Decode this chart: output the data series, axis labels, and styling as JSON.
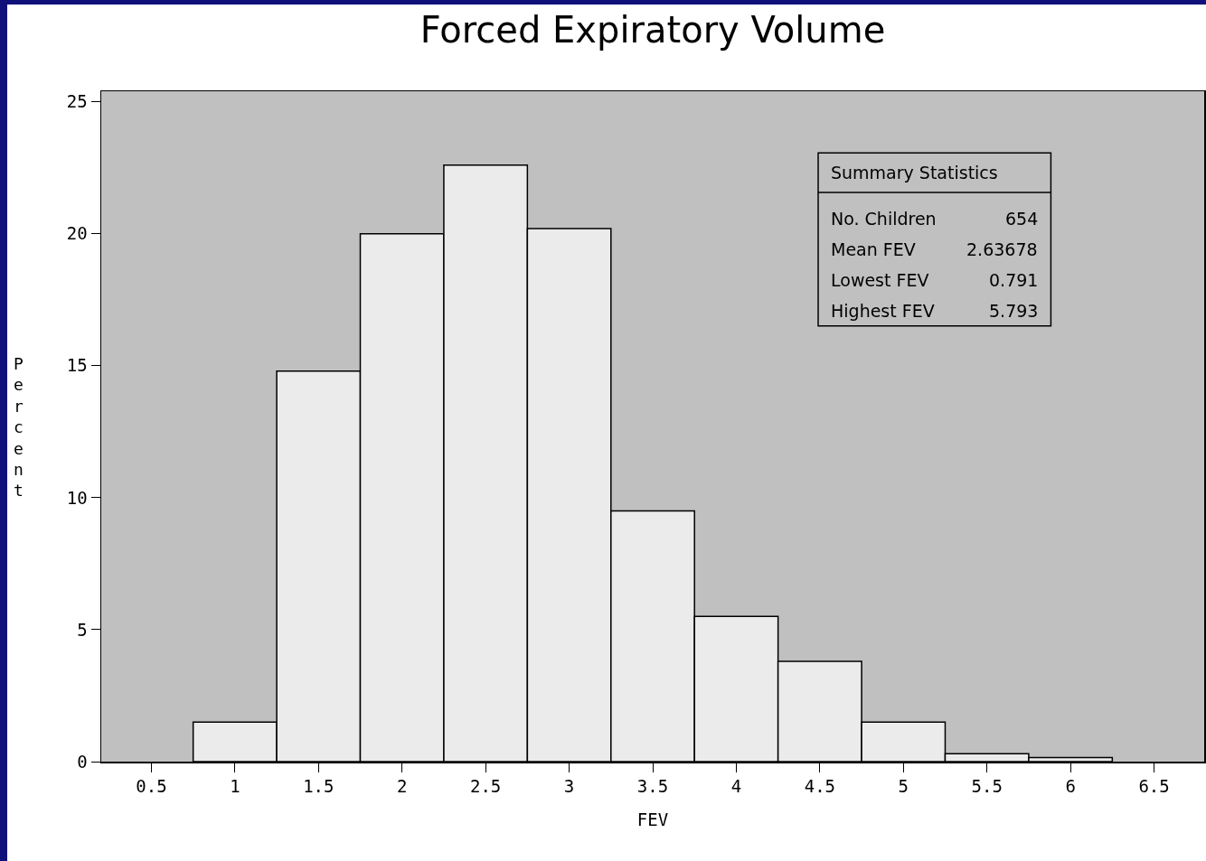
{
  "chart_data": {
    "type": "histogram",
    "title": "Forced Expiratory Volume",
    "xlabel": "FEV",
    "ylabel": "Percent",
    "bins": [
      0.75,
      1.25,
      1.75,
      2.25,
      2.75,
      3.25,
      3.75,
      4.25,
      4.75,
      5.25,
      5.75,
      6.25
    ],
    "values": [
      1.5,
      14.8,
      20.0,
      22.6,
      20.2,
      9.5,
      5.5,
      3.8,
      1.5,
      0.3,
      0.15
    ],
    "color": "#ebebeb",
    "xlim": [
      0.2,
      6.8
    ],
    "xticks": [
      0.5,
      1,
      1.5,
      2,
      2.5,
      3,
      3.5,
      4,
      4.5,
      5,
      5.5,
      6,
      6.5
    ],
    "ylim": [
      0,
      25.4
    ],
    "yticks": [
      0,
      5,
      10,
      15,
      20,
      25
    ],
    "grid": false,
    "annotations": [
      "Summary Statistics",
      "No. Children",
      "654",
      "Mean FEV",
      "2.63678",
      "Lowest FEV",
      "0.791",
      "Highest FEV",
      "5.793"
    ]
  }
}
